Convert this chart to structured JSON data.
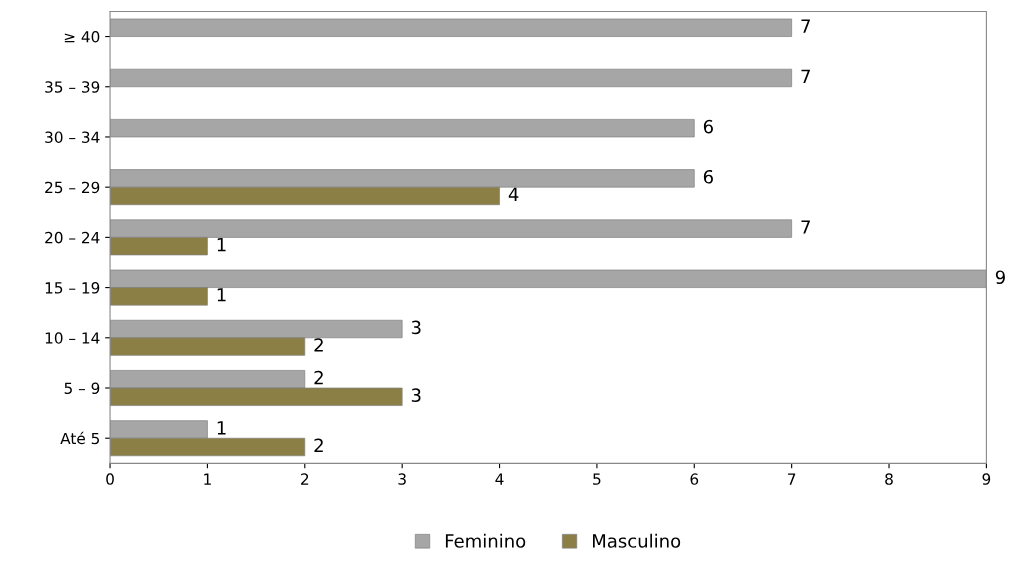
{
  "chart_data": {
    "type": "bar",
    "orientation": "horizontal",
    "categories": [
      "≥ 40",
      "35 – 39",
      "30 – 34",
      "25 – 29",
      "20 – 24",
      "15 – 19",
      "10 – 14",
      "5 – 9",
      "Até 5"
    ],
    "series": [
      {
        "name": "Feminino",
        "color": "#a6a6a6",
        "values": [
          7,
          7,
          6,
          6,
          7,
          9,
          3,
          2,
          1
        ]
      },
      {
        "name": "Masculino",
        "color": "#8c7f45",
        "values": [
          null,
          null,
          null,
          4,
          1,
          1,
          2,
          3,
          2
        ]
      }
    ],
    "xlim": [
      0,
      9
    ],
    "xticks": [
      0,
      1,
      2,
      3,
      4,
      5,
      6,
      7,
      8,
      9
    ],
    "data_labels": true,
    "grid": false,
    "legend": "bottom"
  }
}
